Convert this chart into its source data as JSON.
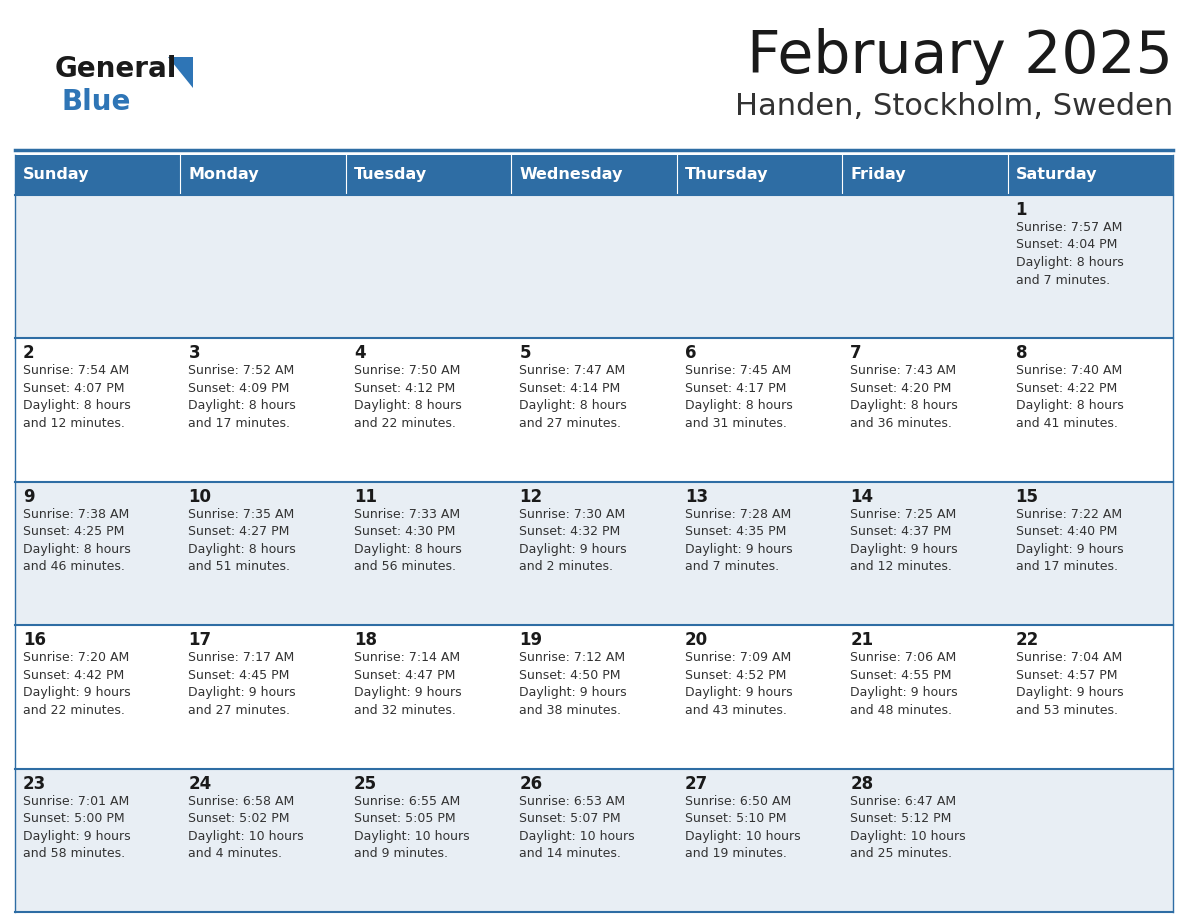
{
  "title": "February 2025",
  "subtitle": "Handen, Stockholm, Sweden",
  "header_bg": "#2E6DA4",
  "header_text_color": "#FFFFFF",
  "row_bg_light": "#E8EEF4",
  "row_bg_white": "#FFFFFF",
  "row_line_color": "#2E6DA4",
  "text_color": "#333333",
  "day_num_color": "#1a1a1a",
  "logo_black": "#1a1a1a",
  "logo_blue": "#2E75B6",
  "title_color": "#1a1a1a",
  "subtitle_color": "#333333",
  "days_of_week": [
    "Sunday",
    "Monday",
    "Tuesday",
    "Wednesday",
    "Thursday",
    "Friday",
    "Saturday"
  ],
  "weeks": [
    [
      {
        "day": "",
        "sunrise": "",
        "sunset": "",
        "daylight": ""
      },
      {
        "day": "",
        "sunrise": "",
        "sunset": "",
        "daylight": ""
      },
      {
        "day": "",
        "sunrise": "",
        "sunset": "",
        "daylight": ""
      },
      {
        "day": "",
        "sunrise": "",
        "sunset": "",
        "daylight": ""
      },
      {
        "day": "",
        "sunrise": "",
        "sunset": "",
        "daylight": ""
      },
      {
        "day": "",
        "sunrise": "",
        "sunset": "",
        "daylight": ""
      },
      {
        "day": "1",
        "sunrise": "7:57 AM",
        "sunset": "4:04 PM",
        "daylight": "8 hours and 7 minutes."
      }
    ],
    [
      {
        "day": "2",
        "sunrise": "7:54 AM",
        "sunset": "4:07 PM",
        "daylight": "8 hours and 12 minutes."
      },
      {
        "day": "3",
        "sunrise": "7:52 AM",
        "sunset": "4:09 PM",
        "daylight": "8 hours and 17 minutes."
      },
      {
        "day": "4",
        "sunrise": "7:50 AM",
        "sunset": "4:12 PM",
        "daylight": "8 hours and 22 minutes."
      },
      {
        "day": "5",
        "sunrise": "7:47 AM",
        "sunset": "4:14 PM",
        "daylight": "8 hours and 27 minutes."
      },
      {
        "day": "6",
        "sunrise": "7:45 AM",
        "sunset": "4:17 PM",
        "daylight": "8 hours and 31 minutes."
      },
      {
        "day": "7",
        "sunrise": "7:43 AM",
        "sunset": "4:20 PM",
        "daylight": "8 hours and 36 minutes."
      },
      {
        "day": "8",
        "sunrise": "7:40 AM",
        "sunset": "4:22 PM",
        "daylight": "8 hours and 41 minutes."
      }
    ],
    [
      {
        "day": "9",
        "sunrise": "7:38 AM",
        "sunset": "4:25 PM",
        "daylight": "8 hours and 46 minutes."
      },
      {
        "day": "10",
        "sunrise": "7:35 AM",
        "sunset": "4:27 PM",
        "daylight": "8 hours and 51 minutes."
      },
      {
        "day": "11",
        "sunrise": "7:33 AM",
        "sunset": "4:30 PM",
        "daylight": "8 hours and 56 minutes."
      },
      {
        "day": "12",
        "sunrise": "7:30 AM",
        "sunset": "4:32 PM",
        "daylight": "9 hours and 2 minutes."
      },
      {
        "day": "13",
        "sunrise": "7:28 AM",
        "sunset": "4:35 PM",
        "daylight": "9 hours and 7 minutes."
      },
      {
        "day": "14",
        "sunrise": "7:25 AM",
        "sunset": "4:37 PM",
        "daylight": "9 hours and 12 minutes."
      },
      {
        "day": "15",
        "sunrise": "7:22 AM",
        "sunset": "4:40 PM",
        "daylight": "9 hours and 17 minutes."
      }
    ],
    [
      {
        "day": "16",
        "sunrise": "7:20 AM",
        "sunset": "4:42 PM",
        "daylight": "9 hours and 22 minutes."
      },
      {
        "day": "17",
        "sunrise": "7:17 AM",
        "sunset": "4:45 PM",
        "daylight": "9 hours and 27 minutes."
      },
      {
        "day": "18",
        "sunrise": "7:14 AM",
        "sunset": "4:47 PM",
        "daylight": "9 hours and 32 minutes."
      },
      {
        "day": "19",
        "sunrise": "7:12 AM",
        "sunset": "4:50 PM",
        "daylight": "9 hours and 38 minutes."
      },
      {
        "day": "20",
        "sunrise": "7:09 AM",
        "sunset": "4:52 PM",
        "daylight": "9 hours and 43 minutes."
      },
      {
        "day": "21",
        "sunrise": "7:06 AM",
        "sunset": "4:55 PM",
        "daylight": "9 hours and 48 minutes."
      },
      {
        "day": "22",
        "sunrise": "7:04 AM",
        "sunset": "4:57 PM",
        "daylight": "9 hours and 53 minutes."
      }
    ],
    [
      {
        "day": "23",
        "sunrise": "7:01 AM",
        "sunset": "5:00 PM",
        "daylight": "9 hours and 58 minutes."
      },
      {
        "day": "24",
        "sunrise": "6:58 AM",
        "sunset": "5:02 PM",
        "daylight": "10 hours and 4 minutes."
      },
      {
        "day": "25",
        "sunrise": "6:55 AM",
        "sunset": "5:05 PM",
        "daylight": "10 hours and 9 minutes."
      },
      {
        "day": "26",
        "sunrise": "6:53 AM",
        "sunset": "5:07 PM",
        "daylight": "10 hours and 14 minutes."
      },
      {
        "day": "27",
        "sunrise": "6:50 AM",
        "sunset": "5:10 PM",
        "daylight": "10 hours and 19 minutes."
      },
      {
        "day": "28",
        "sunrise": "6:47 AM",
        "sunset": "5:12 PM",
        "daylight": "10 hours and 25 minutes."
      },
      {
        "day": "",
        "sunrise": "",
        "sunset": "",
        "daylight": ""
      }
    ]
  ]
}
